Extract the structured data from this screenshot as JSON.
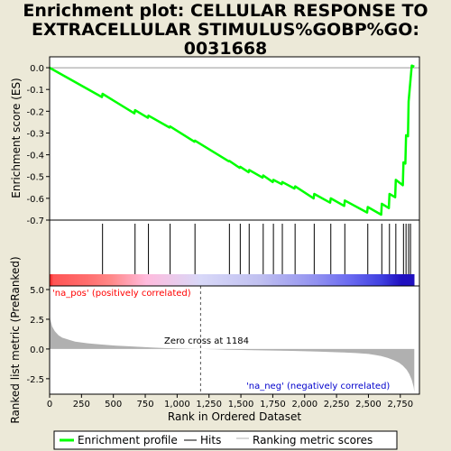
{
  "title_lines": [
    "Enrichment plot: CELLULAR RESPONSE TO",
    "EXTRACELLULAR STIMULUS%GOBP%GO:",
    "0031668"
  ],
  "chart_data": [
    {
      "type": "line",
      "name": "enrichment-profile",
      "ylabel": "Enrichment score (ES)",
      "xlim": [
        0,
        2900
      ],
      "ylim": [
        -0.7,
        0.05
      ],
      "yticks": [
        0.0,
        -0.1,
        -0.2,
        -0.3,
        -0.4,
        -0.5,
        -0.6,
        -0.7
      ],
      "ytick_labels": [
        "0.0",
        "-0.1",
        "-0.2",
        "-0.3",
        "-0.4",
        "-0.5",
        "-0.6",
        "-0.7"
      ],
      "color": "#00ff00",
      "x": [
        0,
        410,
        415,
        665,
        670,
        770,
        775,
        940,
        945,
        1135,
        1140,
        1405,
        1410,
        1490,
        1495,
        1560,
        1565,
        1670,
        1675,
        1750,
        1755,
        1820,
        1825,
        1920,
        1925,
        2070,
        2075,
        2200,
        2205,
        2310,
        2315,
        2490,
        2495,
        2600,
        2605,
        2660,
        2665,
        2710,
        2715,
        2770,
        2775,
        2790,
        2795,
        2810,
        2815,
        2840,
        2860
      ],
      "y": [
        0.0,
        -0.135,
        -0.12,
        -0.21,
        -0.195,
        -0.23,
        -0.22,
        -0.275,
        -0.27,
        -0.34,
        -0.335,
        -0.43,
        -0.428,
        -0.46,
        -0.455,
        -0.48,
        -0.47,
        -0.505,
        -0.495,
        -0.525,
        -0.515,
        -0.535,
        -0.525,
        -0.555,
        -0.545,
        -0.6,
        -0.58,
        -0.62,
        -0.6,
        -0.635,
        -0.61,
        -0.665,
        -0.64,
        -0.675,
        -0.625,
        -0.645,
        -0.58,
        -0.595,
        -0.515,
        -0.54,
        -0.435,
        -0.44,
        -0.31,
        -0.315,
        -0.155,
        0.01,
        0.005
      ]
    },
    {
      "type": "scatter",
      "name": "hits",
      "legend": "Hits",
      "x": [
        415,
        670,
        775,
        945,
        1140,
        1410,
        1495,
        1565,
        1675,
        1755,
        1825,
        1925,
        2075,
        2205,
        2315,
        2495,
        2605,
        2665,
        2715,
        2775,
        2795,
        2815,
        2830
      ]
    },
    {
      "type": "bar",
      "name": "color-band",
      "stops": [
        {
          "x": 0,
          "color": "#ff2020"
        },
        {
          "x": 30,
          "color": "#ff5555"
        },
        {
          "x": 310,
          "color": "#ff7070"
        },
        {
          "x": 480,
          "color": "#ff8888"
        },
        {
          "x": 760,
          "color": "#ffbbdd"
        },
        {
          "x": 1180,
          "color": "#d8d8f8"
        },
        {
          "x": 1650,
          "color": "#c0c0f0"
        },
        {
          "x": 2100,
          "color": "#9090f0"
        },
        {
          "x": 2350,
          "color": "#6a6af0"
        },
        {
          "x": 2600,
          "color": "#4040e0"
        },
        {
          "x": 2760,
          "color": "#2010c0"
        },
        {
          "x": 2860,
          "color": "#2010c0"
        }
      ]
    },
    {
      "type": "area",
      "name": "ranking-metric",
      "ylabel": "Ranked list metric (PreRanked)",
      "xlabel": "Rank in Ordered Dataset",
      "xlim": [
        0,
        2900
      ],
      "ylim": [
        -3.8,
        5.0
      ],
      "yticks": [
        5.0,
        2.5,
        0.0,
        -2.5
      ],
      "ytick_labels": [
        "5.0",
        "2.5",
        "0.0",
        "-2.5"
      ],
      "xticks": [
        0,
        250,
        500,
        750,
        1000,
        1250,
        1500,
        1750,
        2000,
        2250,
        2500,
        2750
      ],
      "xtick_labels": [
        "0",
        "250",
        "500",
        "750",
        "1,000",
        "1,250",
        "1,500",
        "1,750",
        "2,000",
        "2,250",
        "2,500",
        "2,750"
      ],
      "color": "#b0b0b0",
      "x": [
        0,
        5,
        20,
        40,
        70,
        100,
        150,
        200,
        300,
        400,
        500,
        600,
        700,
        800,
        900,
        1000,
        1100,
        1184,
        1300,
        1400,
        1500,
        1600,
        1700,
        1800,
        1900,
        2000,
        2100,
        2200,
        2300,
        2400,
        2500,
        2550,
        2600,
        2650,
        2700,
        2740,
        2770,
        2800,
        2820,
        2840,
        2855,
        2860
      ],
      "y": [
        3.2,
        2.5,
        1.9,
        1.5,
        1.15,
        0.95,
        0.78,
        0.62,
        0.48,
        0.38,
        0.3,
        0.24,
        0.18,
        0.13,
        0.08,
        0.05,
        0.02,
        0.0,
        -0.03,
        -0.06,
        -0.08,
        -0.1,
        -0.12,
        -0.14,
        -0.16,
        -0.19,
        -0.22,
        -0.25,
        -0.29,
        -0.34,
        -0.42,
        -0.5,
        -0.6,
        -0.75,
        -0.95,
        -1.15,
        -1.4,
        -1.75,
        -2.1,
        -2.6,
        -3.2,
        -3.6
      ]
    }
  ],
  "annotations": {
    "na_pos": "'na_pos' (positively correlated)",
    "na_neg": "'na_neg' (negatively correlated)",
    "zero_cross": "Zero cross at 1184",
    "zero_cross_x": 1184
  },
  "legend": {
    "items": [
      "Enrichment profile",
      "Hits",
      "Ranking metric scores"
    ]
  },
  "colors": {
    "background": "#ece9d8",
    "profile": "#00ff00",
    "na_pos": "#ff0000",
    "na_neg": "#0000cc",
    "metric": "#b0b0b0"
  }
}
